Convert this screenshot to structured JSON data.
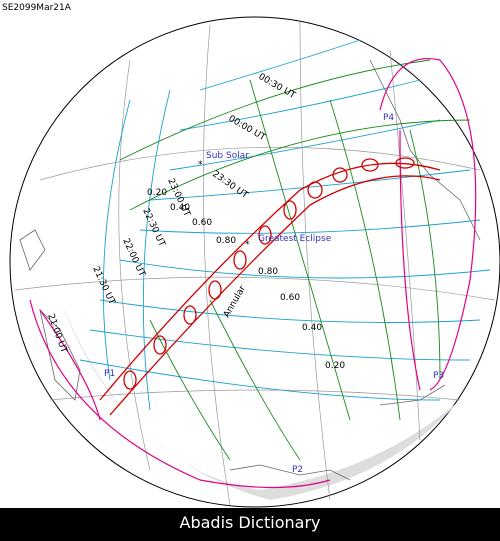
{
  "title": "SE2099Mar21A",
  "time_labels": [
    "00:30 UT",
    "00:00 UT",
    "23:30 UT",
    "23:00 UT",
    "22:30 UT",
    "22:00 UT",
    "21:30 UT",
    "21:00 UT"
  ],
  "magnitude_north": [
    "0.20",
    "0.40",
    "0.60",
    "0.80"
  ],
  "magnitude_south": [
    "0.80",
    "0.60",
    "0.40",
    "0.20"
  ],
  "sub_solar": "Sub Solar",
  "greatest_eclipse": "Greatest Eclipse",
  "path_type": "Annular",
  "contact_points": [
    "P1",
    "P2",
    "P3",
    "P4"
  ],
  "footer": "Abadis Dictionary"
}
